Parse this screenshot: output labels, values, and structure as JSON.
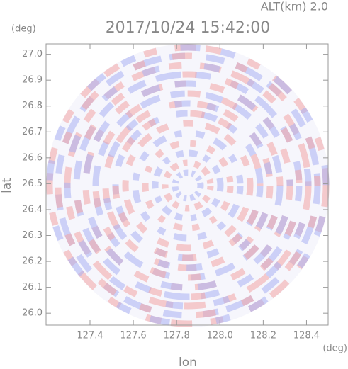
{
  "chart_data": {
    "type": "radar-ppi",
    "title": "2017/10/24 15:42:00",
    "subtitle": "ALT(km) 2.0",
    "x_label": "lon",
    "y_label": "lat",
    "x_unit": "(deg)",
    "y_unit": "(deg)",
    "xlim": [
      127.197,
      128.5
    ],
    "ylim": [
      25.954,
      27.04
    ],
    "xticks": [
      127.4,
      127.6,
      127.8,
      {
        "value": 128.0,
        "label": "128.0"
      },
      128.2,
      128.4
    ],
    "yticks": [
      {
        "value": 26.0,
        "label": "26.0"
      },
      26.1,
      26.2,
      26.3,
      26.4,
      26.5,
      26.6,
      26.7,
      26.8,
      26.9,
      {
        "value": 27.0,
        "label": "27.0"
      }
    ]
  }
}
